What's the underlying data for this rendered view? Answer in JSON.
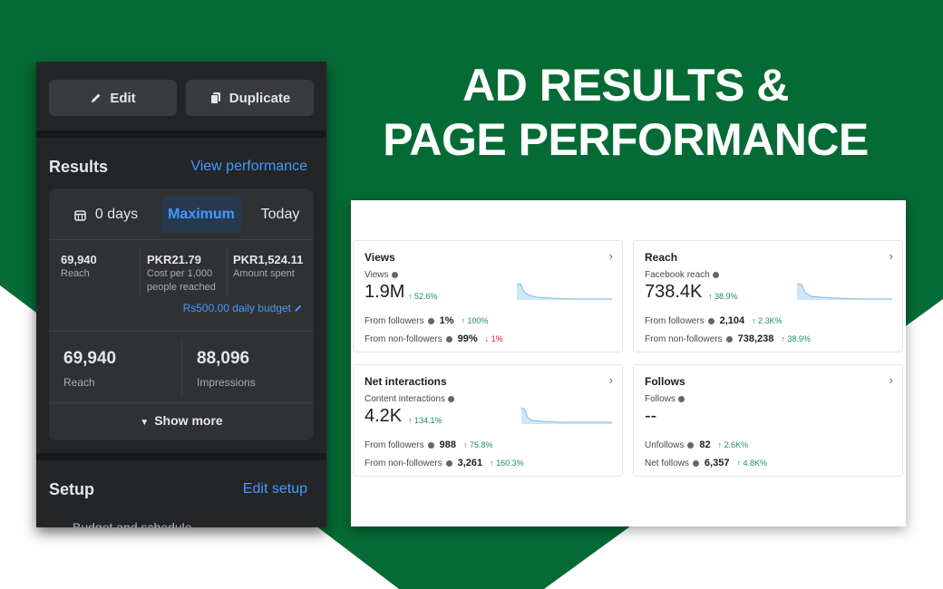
{
  "colors": {
    "green": "#056b35",
    "dark_panel": "#242526",
    "link": "#4599ff",
    "positive": "#1e8a67",
    "negative": "#c62828"
  },
  "headline": {
    "line1": "AD RESULTS &",
    "line2": "PAGE PERFORMANCE"
  },
  "phone": {
    "actions": {
      "edit_label": "Edit",
      "edit_icon": "pencil-icon",
      "duplicate_label": "Duplicate",
      "duplicate_icon": "duplicate-icon"
    },
    "results": {
      "title": "Results",
      "view_performance": "View performance",
      "date_icon": "calendar-icon",
      "date_options": [
        "0 days",
        "Maximum",
        "Today"
      ],
      "selected_option": "Maximum",
      "stats": [
        {
          "value": "69,940",
          "label": "Reach"
        },
        {
          "value": "PKR21.79",
          "label_line1": "Cost per 1,000",
          "label_line2": "people reached"
        },
        {
          "value": "PKR1,524.11",
          "label": "Amount spent"
        }
      ],
      "budget": "Rs500.00 daily budget",
      "big_stats": [
        {
          "value": "69,940",
          "label": "Reach"
        },
        {
          "value": "88,096",
          "label": "Impressions"
        }
      ],
      "show_more": "Show more"
    },
    "setup": {
      "title": "Setup",
      "edit_setup": "Edit setup",
      "budget_schedule": "Budget and schedule"
    }
  },
  "insights": {
    "cards": [
      {
        "title": "Views",
        "metric_label": "Views",
        "value": "1.9M",
        "change": "52.6%",
        "rows": [
          {
            "label": "From followers",
            "value": "1%",
            "change": "100%",
            "direction": "up"
          },
          {
            "label": "From non-followers",
            "value": "99%",
            "change": "1%",
            "direction": "down"
          }
        ]
      },
      {
        "title": "Reach",
        "metric_label": "Facebook reach",
        "value": "738.4K",
        "change": "38.9%",
        "rows": [
          {
            "label": "From followers",
            "value": "2,104",
            "change": "2.3K%",
            "direction": "up"
          },
          {
            "label": "From non-followers",
            "value": "738,238",
            "change": "38.9%",
            "direction": "up"
          }
        ]
      },
      {
        "title": "Net interactions",
        "metric_label": "Content interactions",
        "value": "4.2K",
        "change": "134.1%",
        "rows": [
          {
            "label": "From followers",
            "value": "988",
            "change": "75.8%",
            "direction": "up"
          },
          {
            "label": "From non-followers",
            "value": "3,261",
            "change": "160.3%",
            "direction": "up"
          }
        ]
      },
      {
        "title": "Follows",
        "metric_label": "Follows",
        "value": "--",
        "change": "",
        "rows": [
          {
            "label": "Unfollows",
            "value": "82",
            "change": "2.6K%",
            "direction": "up"
          },
          {
            "label": "Net follows",
            "value": "6,357",
            "change": "4.8K%",
            "direction": "up"
          }
        ]
      }
    ]
  }
}
